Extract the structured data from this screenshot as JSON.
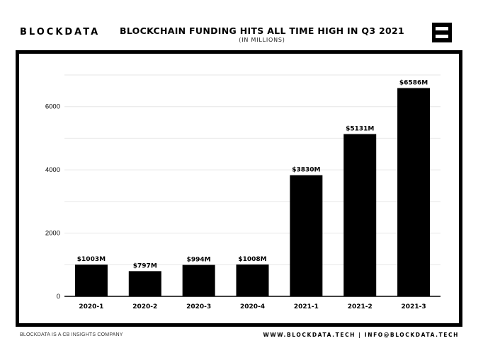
{
  "header": {
    "logo_text": "BLOCKDATA",
    "title": "BLOCKCHAIN FUNDING HITS ALL TIME HIGH IN Q3 2021",
    "subtitle": "(IN MILLIONS)"
  },
  "footer": {
    "left_text": "BLOCKDATA IS A CB INSIGHTS COMPANY",
    "right_text": "WWW.BLOCKDATA.TECH | INFO@BLOCKDATA.TECH"
  },
  "colors": {
    "bar": "#000000",
    "grid": "#e6e6e6",
    "axis": "#000000",
    "text": "#000000"
  },
  "chart_data": {
    "type": "bar",
    "title": "BLOCKCHAIN FUNDING HITS ALL TIME HIGH IN Q3 2021",
    "subtitle": "(IN MILLIONS)",
    "categories": [
      "2020-1",
      "2020-2",
      "2020-3",
      "2020-4",
      "2021-1",
      "2021-2",
      "2021-3"
    ],
    "values": [
      1003,
      797,
      994,
      1008,
      3830,
      5131,
      6586
    ],
    "data_labels": [
      "$1003M",
      "$797M",
      "$994M",
      "$1008M",
      "$3830M",
      "$5131M",
      "$6586M"
    ],
    "y_ticks": [
      0,
      2000,
      4000,
      6000
    ],
    "ylim": [
      0,
      7000
    ],
    "grid": true,
    "legend": false
  }
}
